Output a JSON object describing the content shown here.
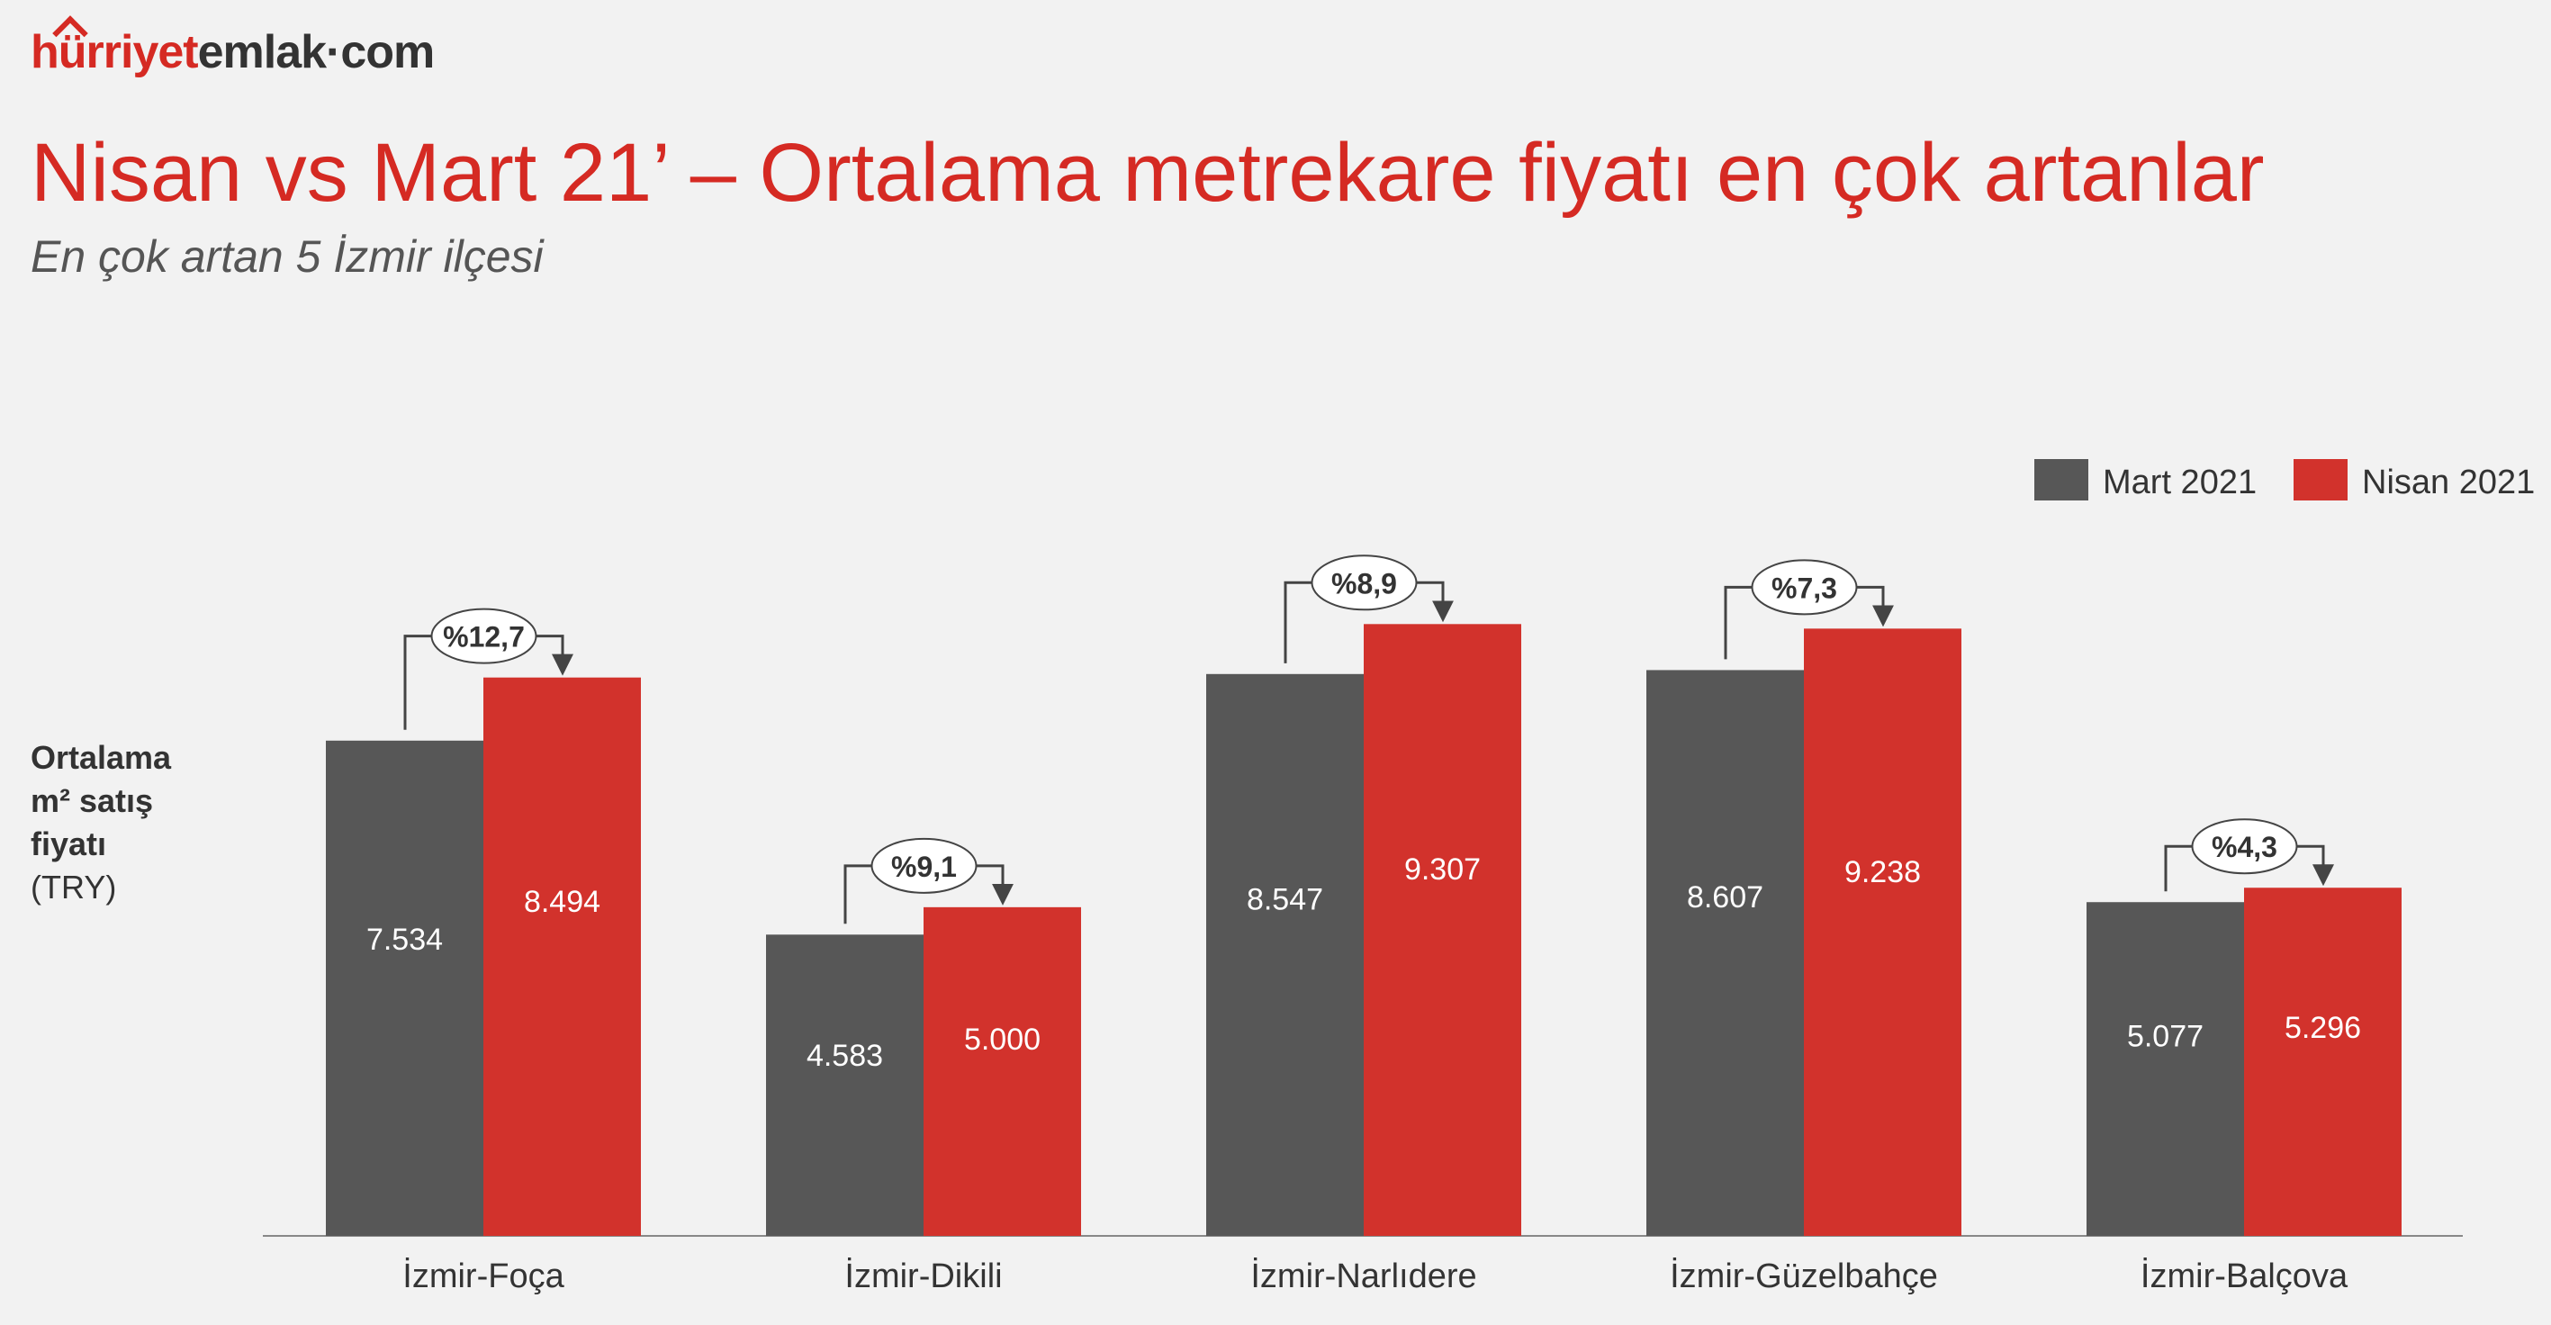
{
  "brand": {
    "logo_prefix": "hürriyet",
    "logo_suffix": "emlak·com"
  },
  "title": "Nisan vs Mart 21’ – Ortalama metrekare fiyatı en çok artanlar",
  "subtitle": "En çok artan 5 İzmir ilçesi",
  "ylabel": {
    "line1": "Ortalama",
    "line2": "m² satış",
    "line3": "fiyatı",
    "unit": "(TRY)"
  },
  "colors": {
    "mart": "#575757",
    "nisan": "#d2322c",
    "title": "#d52a23"
  },
  "chart_data": {
    "type": "bar",
    "categories": [
      "İzmir-Foça",
      "İzmir-Dikili",
      "İzmir-Narlıdere",
      "İzmir-Güzelbahçe",
      "İzmir-Balçova"
    ],
    "series": [
      {
        "name": "Mart 2021",
        "values": [
          7534,
          4583,
          8547,
          8607,
          5077
        ],
        "labels": [
          "7.534",
          "4.583",
          "8.547",
          "8.607",
          "5.077"
        ]
      },
      {
        "name": "Nisan 2021",
        "values": [
          8494,
          5000,
          9307,
          9238,
          5296
        ],
        "labels": [
          "8.494",
          "5.000",
          "9.307",
          "9.238",
          "5.296"
        ]
      }
    ],
    "annotations": [
      "%12,7",
      "%9,1",
      "%8,9",
      "%7,3",
      "%4,3"
    ],
    "ylim": [
      0,
      10500
    ],
    "grid": false,
    "legend": "top-right"
  }
}
